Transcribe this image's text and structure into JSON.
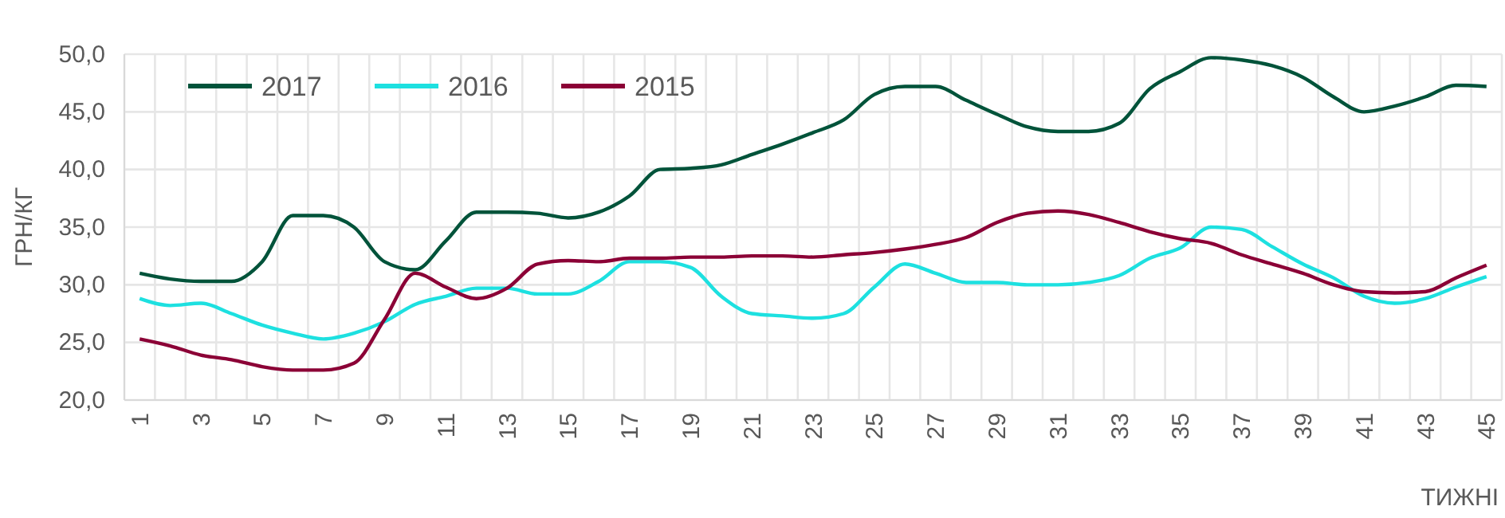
{
  "chart_data": {
    "type": "line",
    "xlabel": "ТИЖНІ",
    "ylabel": "ГРН/КГ",
    "categories": [
      "1",
      null,
      "3",
      null,
      "5",
      null,
      "7",
      null,
      "9",
      null,
      "11",
      null,
      "13",
      null,
      "15",
      null,
      "17",
      null,
      "19",
      null,
      "21",
      null,
      "23",
      null,
      "25",
      null,
      "27",
      null,
      "29",
      null,
      "31",
      null,
      "33",
      null,
      "35",
      null,
      "37",
      null,
      "39",
      null,
      "41",
      null,
      "43",
      null,
      "45"
    ],
    "series": [
      {
        "name": "2017",
        "color": "#00533a",
        "values": [
          31,
          30.5,
          30.3,
          30.3,
          32,
          36,
          36,
          35,
          32,
          31.3,
          33.8,
          36.3,
          36.3,
          36.2,
          35.8,
          36.3,
          37.7,
          40,
          40.1,
          40.4,
          41.3,
          42.2,
          43.2,
          44.3,
          46.5,
          47.2,
          47.2,
          46,
          44.8,
          43.7,
          43.3,
          43.3,
          44,
          47,
          48.5,
          49.7,
          49.5,
          49,
          48,
          46.3,
          45,
          45.5,
          46.3,
          47.3,
          47.2
        ]
      },
      {
        "name": "2016",
        "color": "#1de0e0",
        "values": [
          28.8,
          28.2,
          28.4,
          27.5,
          26.5,
          25.8,
          25.3,
          25.8,
          26.8,
          28.3,
          29,
          29.7,
          29.7,
          29.2,
          29.2,
          30.3,
          32,
          32,
          31.5,
          29,
          27.5,
          27.3,
          27.1,
          27.5,
          29.8,
          31.8,
          31,
          30.2,
          30.2,
          30,
          30,
          30.2,
          30.8,
          32.3,
          33.2,
          35,
          34.8,
          33.3,
          31.8,
          30.6,
          29,
          28.4,
          28.8,
          29.8,
          30.7
        ]
      },
      {
        "name": "2015",
        "color": "#8b0036",
        "values": [
          25.3,
          24.7,
          23.9,
          23.5,
          22.9,
          22.6,
          22.6,
          23.2,
          27,
          31,
          29.8,
          28.8,
          29.7,
          31.8,
          32.1,
          32,
          32.3,
          32.3,
          32.4,
          32.4,
          32.5,
          32.5,
          32.4,
          32.6,
          32.8,
          33.1,
          33.5,
          34.1,
          35.4,
          36.2,
          36.4,
          36.1,
          35.4,
          34.6,
          34,
          33.6,
          32.6,
          31.8,
          31,
          30,
          29.4,
          29.3,
          29.4,
          30.6,
          31.7
        ]
      }
    ],
    "ylim": [
      20,
      50
    ],
    "yticks": [
      {
        "value": 20,
        "label": "20,0"
      },
      {
        "value": 25,
        "label": "25,0"
      },
      {
        "value": 30,
        "label": "30,0"
      },
      {
        "value": 35,
        "label": "35,0"
      },
      {
        "value": 40,
        "label": "40,0"
      },
      {
        "value": 45,
        "label": "45,0"
      },
      {
        "value": 50,
        "label": "50,0"
      }
    ],
    "grid": true,
    "legend": "top left",
    "marker": "none",
    "line_style": "solid"
  }
}
